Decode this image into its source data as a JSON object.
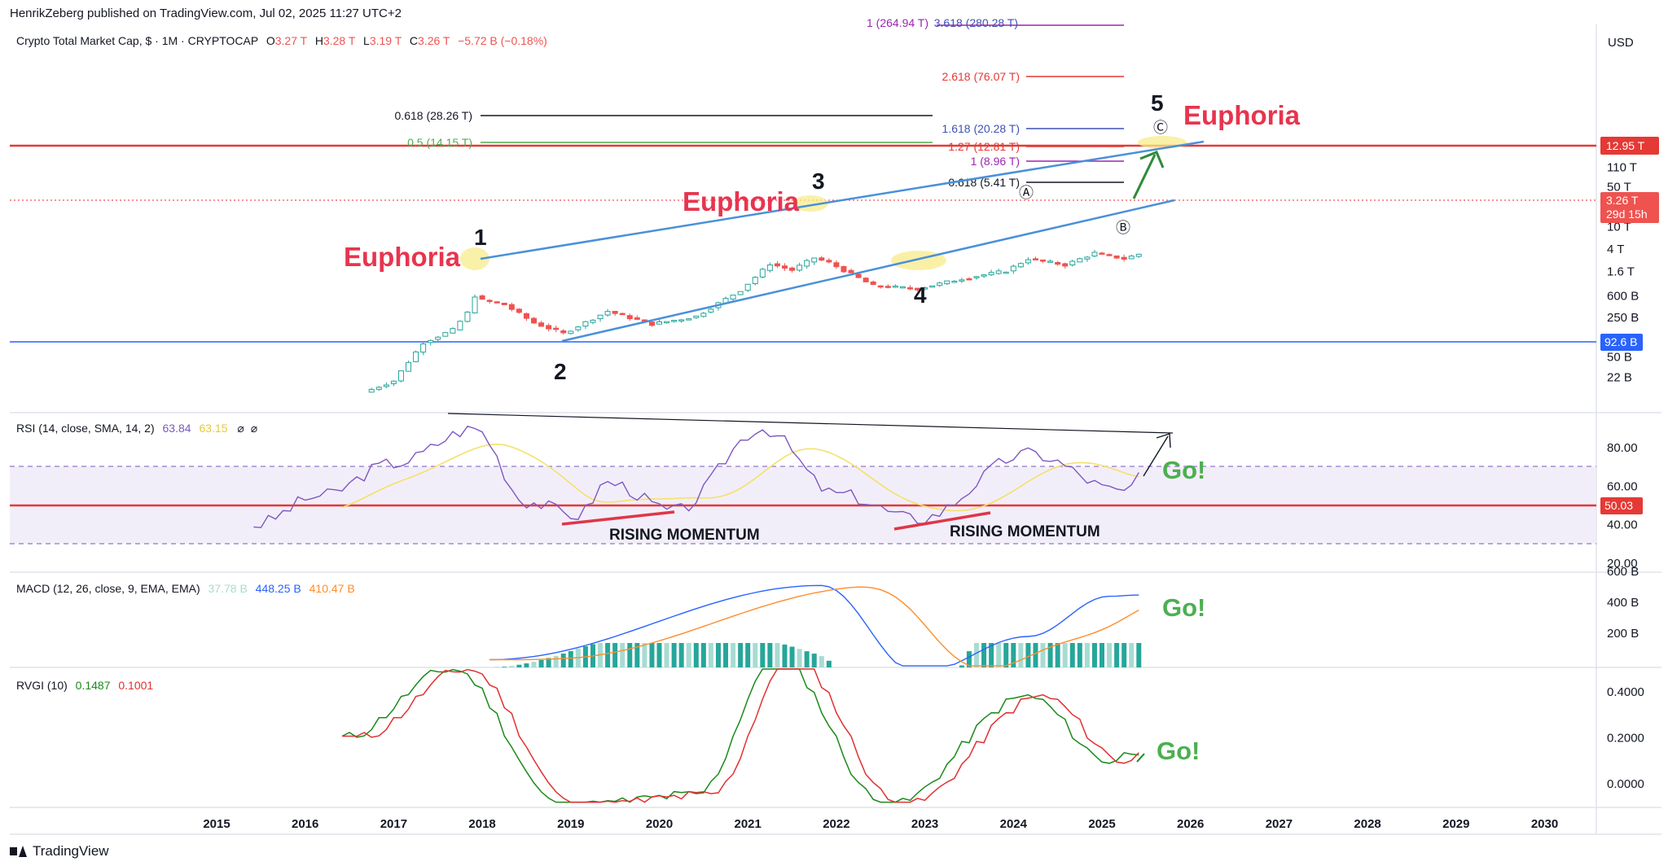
{
  "publisher_line": "HenrikZeberg published on TradingView.com, Jul 02, 2025 11:27 UTC+2",
  "footer_brand": "TradingView",
  "currency": "USD",
  "legend": {
    "price": {
      "symbol": "Crypto Total Market Cap, $ · 1M · CRYPTOCAP",
      "o_label": "O",
      "o": "3.27 T",
      "h_label": "H",
      "h": "3.28 T",
      "l_label": "L",
      "l": "3.19 T",
      "c_label": "C",
      "c": "3.26 T",
      "change": "−5.72 B (−0.18%)"
    },
    "rsi": {
      "name": "RSI (14, close, SMA, 14, 2)",
      "v1": "63.84",
      "v2": "63.15"
    },
    "macd": {
      "name": "MACD (12, 26, close, 9, EMA, EMA)",
      "v1": "37.78 B",
      "v2": "448.25 B",
      "v3": "410.47 B"
    },
    "rvgi": {
      "name": "RVGI (10)",
      "v1": "0.1487",
      "v2": "0.1001"
    }
  },
  "colors": {
    "up": "#26a69a",
    "down": "#ef5350",
    "channel": "#4a90d9",
    "red_line": "#e53935",
    "blue_line": "#2962ff",
    "rsi": "#7e57c2",
    "rsi_ma": "#f5e06a",
    "euphoria": "#e8344e",
    "go": "#4caf50",
    "macd": "#2962ff",
    "signal": "#ff8c2b",
    "rvgi": "#1b8a1b",
    "rvgi_sig": "#e03131"
  },
  "chart_data": [
    {
      "type": "candlestick",
      "title": "Crypto Total Market Cap, $ · 1M · CRYPTOCAP",
      "scale": "log",
      "y_axis_ticks": [
        "110 T",
        "50 T",
        "22 T",
        "10 T",
        "4 T",
        "1.6 T",
        "600 B",
        "250 B",
        "110 B",
        "50 B",
        "22 B"
      ],
      "x_axis_ticks": [
        "2015",
        "2016",
        "2017",
        "2018",
        "2019",
        "2020",
        "2021",
        "2022",
        "2023",
        "2024",
        "2025",
        "2026",
        "2027",
        "2028",
        "2029",
        "2030"
      ],
      "monthly_close_approx": [
        {
          "date": "2016-09",
          "close": 0.012
        },
        {
          "date": "2017-01",
          "close": 0.019
        },
        {
          "date": "2017-05",
          "close": 0.09
        },
        {
          "date": "2017-09",
          "close": 0.15
        },
        {
          "date": "2017-11",
          "close": 0.3
        },
        {
          "date": "2017-12",
          "close": 0.6
        },
        {
          "date": "2018-01",
          "close": 0.5
        },
        {
          "date": "2018-04",
          "close": 0.42
        },
        {
          "date": "2018-08",
          "close": 0.2
        },
        {
          "date": "2018-12",
          "close": 0.13
        },
        {
          "date": "2019-06",
          "close": 0.32
        },
        {
          "date": "2019-12",
          "close": 0.19
        },
        {
          "date": "2020-06",
          "close": 0.26
        },
        {
          "date": "2020-12",
          "close": 0.75
        },
        {
          "date": "2021-04",
          "close": 2.2
        },
        {
          "date": "2021-07",
          "close": 1.7
        },
        {
          "date": "2021-10",
          "close": 2.8
        },
        {
          "date": "2021-12",
          "close": 2.3
        },
        {
          "date": "2022-06",
          "close": 0.9
        },
        {
          "date": "2022-12",
          "close": 0.8
        },
        {
          "date": "2023-06",
          "close": 1.2
        },
        {
          "date": "2023-12",
          "close": 1.65
        },
        {
          "date": "2024-03",
          "close": 2.7
        },
        {
          "date": "2024-08",
          "close": 2.1
        },
        {
          "date": "2024-12",
          "close": 3.4
        },
        {
          "date": "2025-04",
          "close": 2.7
        },
        {
          "date": "2025-06",
          "close": 3.26
        }
      ],
      "price_labels": [
        {
          "text": "12.95 T",
          "value": 12.95,
          "color": "#e53935"
        },
        {
          "text": "3.26 T",
          "sub": "29d 15h",
          "value": 3.26,
          "color": "#ef5350"
        },
        {
          "text": "92.6 B",
          "value": 0.0926,
          "color": "#2962ff"
        }
      ],
      "fib_levels": [
        {
          "text": "1 (264.94 T)",
          "color": "#9c27b0"
        },
        {
          "text": "3.618 (280.28 T)",
          "color": "#3f51b5"
        },
        {
          "text": "2.618 (76.07 T)",
          "color": "#e53935"
        },
        {
          "text": "0.618 (28.26 T)",
          "color": "#131722"
        },
        {
          "text": "1.618 (20.28 T)",
          "color": "#3f51b5"
        },
        {
          "text": "0.5 (14.15 T)",
          "color": "#4caf50"
        },
        {
          "text": "1.27 (12.81 T)",
          "color": "#e53935"
        },
        {
          "text": "1 (8.96 T)",
          "color": "#9c27b0"
        },
        {
          "text": "0.618 (5.41 T)",
          "color": "#131722"
        }
      ],
      "annotations": {
        "wave_labels": [
          "1",
          "2",
          "3",
          "4",
          "5"
        ],
        "sub_wave_labels": [
          "Ⓐ",
          "Ⓑ",
          "Ⓒ"
        ],
        "euphoria_text": "Euphoria",
        "go_text": "Go!",
        "rising_momentum_text": "RISING MOMENTUM"
      }
    },
    {
      "type": "line",
      "title": "RSI (14, close, SMA, 14, 2)",
      "y_axis_ticks": [
        "80.00",
        "60.00",
        "50.03",
        "40.00",
        "20.00"
      ],
      "band_upper": 70,
      "band_lower": 30,
      "midline": 50,
      "current": {
        "rsi": 63.84,
        "rsi_ma": 63.15
      },
      "series_approx": [
        {
          "date": "2015-06",
          "rsi": 40
        },
        {
          "date": "2016-03",
          "rsi": 55
        },
        {
          "date": "2017-01",
          "rsi": 72
        },
        {
          "date": "2017-12",
          "rsi": 90
        },
        {
          "date": "2018-07",
          "rsi": 52
        },
        {
          "date": "2019-02",
          "rsi": 45
        },
        {
          "date": "2019-06",
          "rsi": 62
        },
        {
          "date": "2020-03",
          "rsi": 47
        },
        {
          "date": "2021-03",
          "rsi": 90
        },
        {
          "date": "2022-01",
          "rsi": 56
        },
        {
          "date": "2022-12",
          "rsi": 43
        },
        {
          "date": "2024-03",
          "rsi": 77
        },
        {
          "date": "2025-04",
          "rsi": 57
        },
        {
          "date": "2025-06",
          "rsi": 63.84
        }
      ]
    },
    {
      "type": "histogram+line",
      "title": "MACD (12, 26, close, 9, EMA, EMA)",
      "y_axis_ticks": [
        "600 B",
        "400 B",
        "200 B"
      ],
      "current": {
        "histogram": 37.78,
        "macd": 448.25,
        "signal": 410.47,
        "unit": "B"
      },
      "series_approx": [
        {
          "date": "2018-02",
          "macd": 30
        },
        {
          "date": "2021-11",
          "macd": 510
        },
        {
          "date": "2022-12",
          "macd": -60
        },
        {
          "date": "2024-03",
          "macd": 180
        },
        {
          "date": "2025-02",
          "macd": 440
        },
        {
          "date": "2025-06",
          "macd": 448
        }
      ]
    },
    {
      "type": "line",
      "title": "RVGI (10)",
      "y_axis_ticks": [
        "0.4000",
        "0.2000",
        "0.0000"
      ],
      "current": {
        "rvgi": 0.1487,
        "signal": 0.1001
      },
      "series_approx": [
        {
          "date": "2016-06",
          "rvgi": 0.2
        },
        {
          "date": "2017-09",
          "rvgi": 0.5
        },
        {
          "date": "2018-12",
          "rvgi": -0.1
        },
        {
          "date": "2020-06",
          "rvgi": -0.05
        },
        {
          "date": "2021-05",
          "rvgi": 0.55
        },
        {
          "date": "2022-08",
          "rvgi": -0.1
        },
        {
          "date": "2024-03",
          "rvgi": 0.38
        },
        {
          "date": "2025-02",
          "rvgi": 0.1
        },
        {
          "date": "2025-06",
          "rvgi": 0.1487
        }
      ]
    }
  ]
}
